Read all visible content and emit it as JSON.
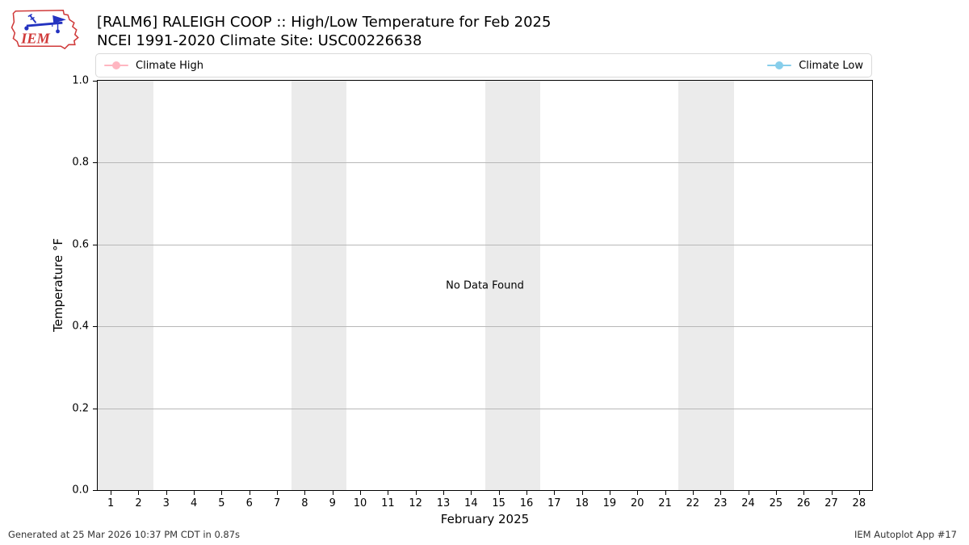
{
  "header": {
    "title_line1": "[RALM6] RALEIGH COOP :: High/Low Temperature for Feb 2025",
    "title_line2": "NCEI 1991-2020 Climate Site: USC00226638",
    "logo_text": "IEM"
  },
  "legend": {
    "items": [
      {
        "label": "Climate High",
        "color": "#ffb6c1",
        "align": "left"
      },
      {
        "label": "Climate Low",
        "color": "#87ceeb",
        "align": "right"
      }
    ]
  },
  "chart_data": {
    "type": "line",
    "title": "[RALM6] RALEIGH COOP :: High/Low Temperature for Feb 2025",
    "subtitle": "NCEI 1991-2020 Climate Site: USC00226638",
    "no_data_text": "No Data Found",
    "xlabel": "February 2025",
    "ylabel": "Temperature °F",
    "xrange": [
      0.5,
      28.5
    ],
    "ylim": [
      0.0,
      1.0
    ],
    "xticks": [
      1,
      2,
      3,
      4,
      5,
      6,
      7,
      8,
      9,
      10,
      11,
      12,
      13,
      14,
      15,
      16,
      17,
      18,
      19,
      20,
      21,
      22,
      23,
      24,
      25,
      26,
      27,
      28
    ],
    "yticks": {
      "values": [
        0.0,
        0.2,
        0.4,
        0.6,
        0.8,
        1.0
      ],
      "labels": [
        "0.0",
        "0.2",
        "0.4",
        "0.6",
        "0.8",
        "1.0"
      ]
    },
    "series": [
      {
        "name": "Climate High",
        "color": "#ffb6c1",
        "values": []
      },
      {
        "name": "Climate Low",
        "color": "#87ceeb",
        "values": []
      }
    ],
    "weekend_bands": [
      [
        0.5,
        2.5
      ],
      [
        7.5,
        9.5
      ],
      [
        14.5,
        16.5
      ],
      [
        21.5,
        23.5
      ]
    ],
    "band_color": "#ebebeb",
    "grid": "horizontal",
    "grid_color": "#b8b8b8",
    "legend_position": "top-spread"
  },
  "footer": {
    "left": "Generated at 25 Mar 2026 10:37 PM CDT in 0.87s",
    "right": "IEM Autoplot App #17"
  }
}
